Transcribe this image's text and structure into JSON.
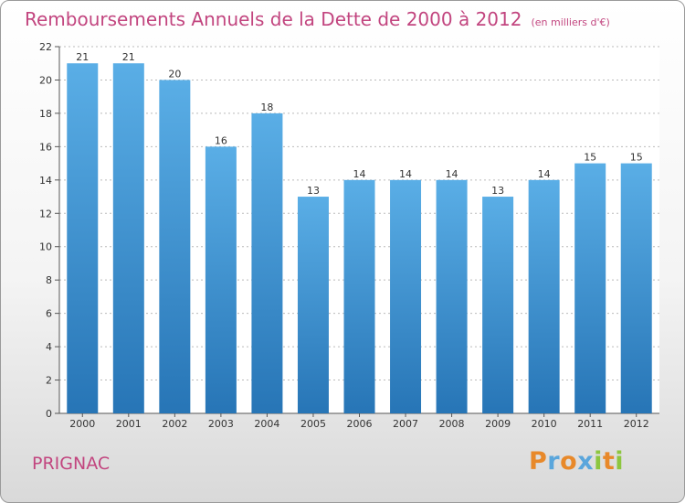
{
  "title": "Remboursements Annuels de la Dette de 2000 à 2012",
  "unit_label": "(en milliers d'€)",
  "commune": "PRIGNAC",
  "logo": {
    "text": "Proxiti",
    "letters": [
      {
        "char": "P",
        "color": "#e8892a"
      },
      {
        "char": "r",
        "color": "#5aa6dc"
      },
      {
        "char": "o",
        "color": "#e8892a"
      },
      {
        "char": "x",
        "color": "#5aa6dc"
      },
      {
        "char": "i",
        "color": "#8dc63f"
      },
      {
        "char": "t",
        "color": "#e8892a"
      },
      {
        "char": "i",
        "color": "#8dc63f"
      }
    ]
  },
  "colors": {
    "title": "#c2457f",
    "bar_top": "#5aaee6",
    "bar_bottom": "#2775b6",
    "axis": "#555555",
    "grid": "#bbbbbb"
  },
  "chart_data": {
    "type": "bar",
    "categories": [
      "2000",
      "2001",
      "2002",
      "2003",
      "2004",
      "2005",
      "2006",
      "2007",
      "2008",
      "2009",
      "2010",
      "2011",
      "2012"
    ],
    "values": [
      21,
      21,
      20,
      16,
      18,
      13,
      14,
      14,
      14,
      13,
      14,
      15,
      15
    ],
    "ylim": [
      0,
      22
    ],
    "yticks": [
      0,
      2,
      4,
      6,
      8,
      10,
      12,
      14,
      16,
      18,
      20,
      22
    ],
    "grid": true,
    "legend": "none"
  }
}
